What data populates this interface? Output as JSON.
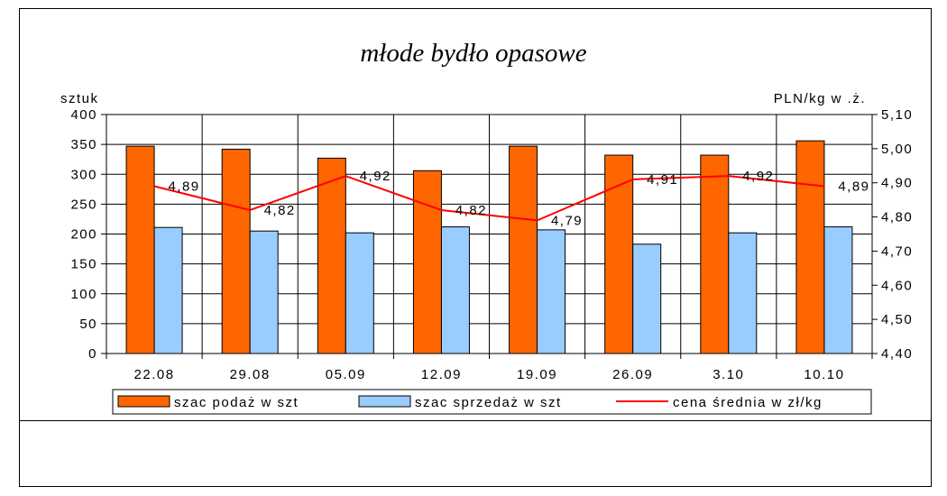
{
  "chart_data": {
    "type": "bar",
    "title": "młode bydło opasowe",
    "ylabel": "sztuk",
    "y2label": "PLN/kg w .ż.",
    "categories": [
      "22.08",
      "29.08",
      "05.09",
      "12.09",
      "19.09",
      "26.09",
      "3.10",
      "10.10"
    ],
    "ylim": [
      0,
      400
    ],
    "yticks": [
      "0",
      "50",
      "100",
      "150",
      "200",
      "250",
      "300",
      "350",
      "400"
    ],
    "y2lim": [
      4.4,
      5.1
    ],
    "y2ticks": [
      "4,40",
      "4,50",
      "4,60",
      "4,70",
      "4,80",
      "4,90",
      "5,00",
      "5,10"
    ],
    "grid": "horizontal and vertical",
    "legend_position": "bottom",
    "series": [
      {
        "name": "szac podaż w szt",
        "type": "bar",
        "axis": "left",
        "color": "#ff6600",
        "values": [
          347,
          342,
          327,
          306,
          347,
          332,
          332,
          356
        ]
      },
      {
        "name": "szac sprzedaż w szt",
        "type": "bar",
        "axis": "left",
        "color": "#99ccff",
        "values": [
          211,
          205,
          202,
          212,
          207,
          183,
          202,
          212
        ]
      },
      {
        "name": "cena średnia w zł/kg",
        "type": "line",
        "axis": "right",
        "color": "#ff0000",
        "values": [
          4.89,
          4.82,
          4.92,
          4.82,
          4.79,
          4.91,
          4.92,
          4.89
        ],
        "labels": [
          "4,89",
          "4,82",
          "4,92",
          "4,82",
          "4,79",
          "4,91",
          "4,92",
          "4,89"
        ]
      }
    ]
  }
}
